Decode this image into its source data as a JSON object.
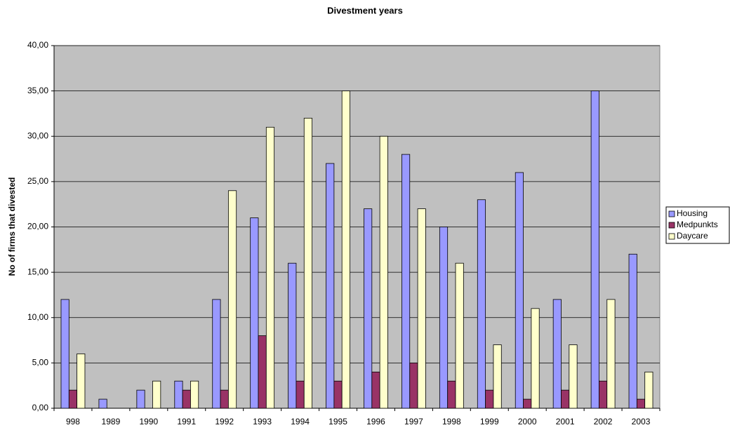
{
  "chart_data": {
    "type": "bar",
    "title": "Divestment years",
    "y_label": "No of firms that divested",
    "categories": [
      "998",
      "1989",
      "1990",
      "1991",
      "1992",
      "1993",
      "1994",
      "1995",
      "1996",
      "1997",
      "1998",
      "1999",
      "2000",
      "2001",
      "2002",
      "2003"
    ],
    "series": [
      {
        "name": "Housing",
        "color": "#9999ff",
        "values": [
          12,
          1,
          2,
          3,
          12,
          21,
          16,
          27,
          22,
          28,
          20,
          23,
          26,
          12,
          35,
          17
        ]
      },
      {
        "name": "Medpunkts",
        "color": "#993366",
        "values": [
          2,
          0,
          0,
          2,
          2,
          8,
          3,
          3,
          4,
          5,
          3,
          2,
          1,
          2,
          3,
          1
        ]
      },
      {
        "name": "Daycare",
        "color": "#ffffcc",
        "values": [
          6,
          0,
          3,
          3,
          24,
          31,
          32,
          35,
          30,
          22,
          16,
          7,
          11,
          7,
          12,
          4
        ]
      }
    ],
    "ylim": [
      0,
      40
    ],
    "yticks": [
      {
        "value": 0,
        "label": "0,00"
      },
      {
        "value": 5,
        "label": "5,00"
      },
      {
        "value": 10,
        "label": "10,00"
      },
      {
        "value": 15,
        "label": "15,00"
      },
      {
        "value": 20,
        "label": "20,00"
      },
      {
        "value": 25,
        "label": "25,00"
      },
      {
        "value": 30,
        "label": "30,00"
      },
      {
        "value": 35,
        "label": "35,00"
      },
      {
        "value": 40,
        "label": "40,00"
      }
    ],
    "grid": true,
    "background": "#c0c0c0",
    "legend": "right"
  }
}
